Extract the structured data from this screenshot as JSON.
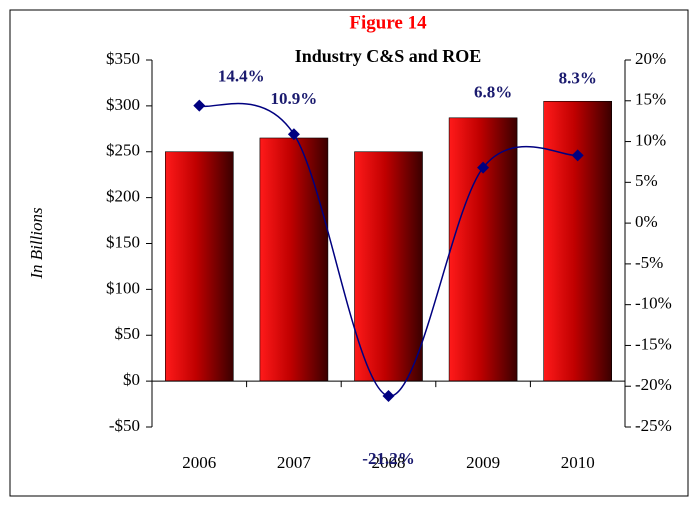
{
  "chart_data": {
    "type": "bar_line",
    "title": "Figure 14",
    "subtitle": "Industry C&S and ROE",
    "y_label": "In Billions",
    "categories": [
      "2006",
      "2007",
      "2008",
      "2009",
      "2010"
    ],
    "series": [
      {
        "name": "C&S",
        "type": "bar",
        "color": "#cc0000",
        "values": [
          250,
          265,
          250,
          287,
          305
        ]
      },
      {
        "name": "ROE",
        "type": "line",
        "axis": "y2",
        "color": "#000080",
        "values": [
          14.4,
          10.9,
          -21.2,
          6.8,
          8.3
        ],
        "value_labels": [
          "14.4%",
          "10.9%",
          "-21.2%",
          "6.8%",
          "8.3%"
        ]
      }
    ],
    "ylim": [
      -50,
      350
    ],
    "yticks": [
      {
        "value": -50,
        "label": "-$50"
      },
      {
        "value": 0,
        "label": "$0"
      },
      {
        "value": 50,
        "label": "$50"
      },
      {
        "value": 100,
        "label": "$100"
      },
      {
        "value": 150,
        "label": "$150"
      },
      {
        "value": 200,
        "label": "$200"
      },
      {
        "value": 250,
        "label": "$250"
      },
      {
        "value": 300,
        "label": "$300"
      },
      {
        "value": 350,
        "label": "$350"
      }
    ],
    "y2lim": [
      -25,
      20
    ],
    "y2ticks": [
      {
        "value": -25,
        "label": "-25%"
      },
      {
        "value": -20,
        "label": "-20%"
      },
      {
        "value": -15,
        "label": "-15%"
      },
      {
        "value": -10,
        "label": "-10%"
      },
      {
        "value": -5,
        "label": "-5%"
      },
      {
        "value": 0,
        "label": "0%"
      },
      {
        "value": 5,
        "label": "5%"
      },
      {
        "value": 10,
        "label": "10%"
      },
      {
        "value": 15,
        "label": "15%"
      },
      {
        "value": 20,
        "label": "20%"
      }
    ]
  }
}
